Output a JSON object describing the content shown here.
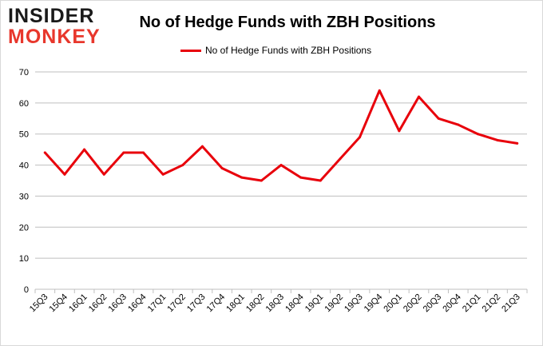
{
  "logo": {
    "line1": "INSIDER",
    "line2": "MONKEY"
  },
  "chart_data": {
    "type": "line",
    "title": "No of Hedge Funds with ZBH Positions",
    "xlabel": "",
    "ylabel": "",
    "categories": [
      "15Q3",
      "15Q4",
      "16Q1",
      "16Q2",
      "16Q3",
      "16Q4",
      "17Q1",
      "17Q2",
      "17Q3",
      "17Q4",
      "18Q1",
      "18Q2",
      "18Q3",
      "18Q4",
      "19Q1",
      "19Q2",
      "19Q3",
      "19Q4",
      "20Q1",
      "20Q2",
      "20Q3",
      "20Q4",
      "21Q1",
      "21Q2",
      "21Q3"
    ],
    "series": [
      {
        "name": "No of Hedge Funds with ZBH Positions",
        "values": [
          44,
          37,
          45,
          37,
          44,
          44,
          37,
          40,
          46,
          39,
          36,
          35,
          40,
          36,
          35,
          42,
          49,
          64,
          51,
          62,
          55,
          53,
          50,
          48,
          47
        ]
      }
    ],
    "ylim": [
      0,
      70
    ],
    "yticks": [
      0,
      10,
      20,
      30,
      40,
      50,
      60,
      70
    ],
    "grid": true,
    "legend_position": "top-center",
    "line_color": "#e8000b",
    "grid_color": "#bfbfbf"
  }
}
